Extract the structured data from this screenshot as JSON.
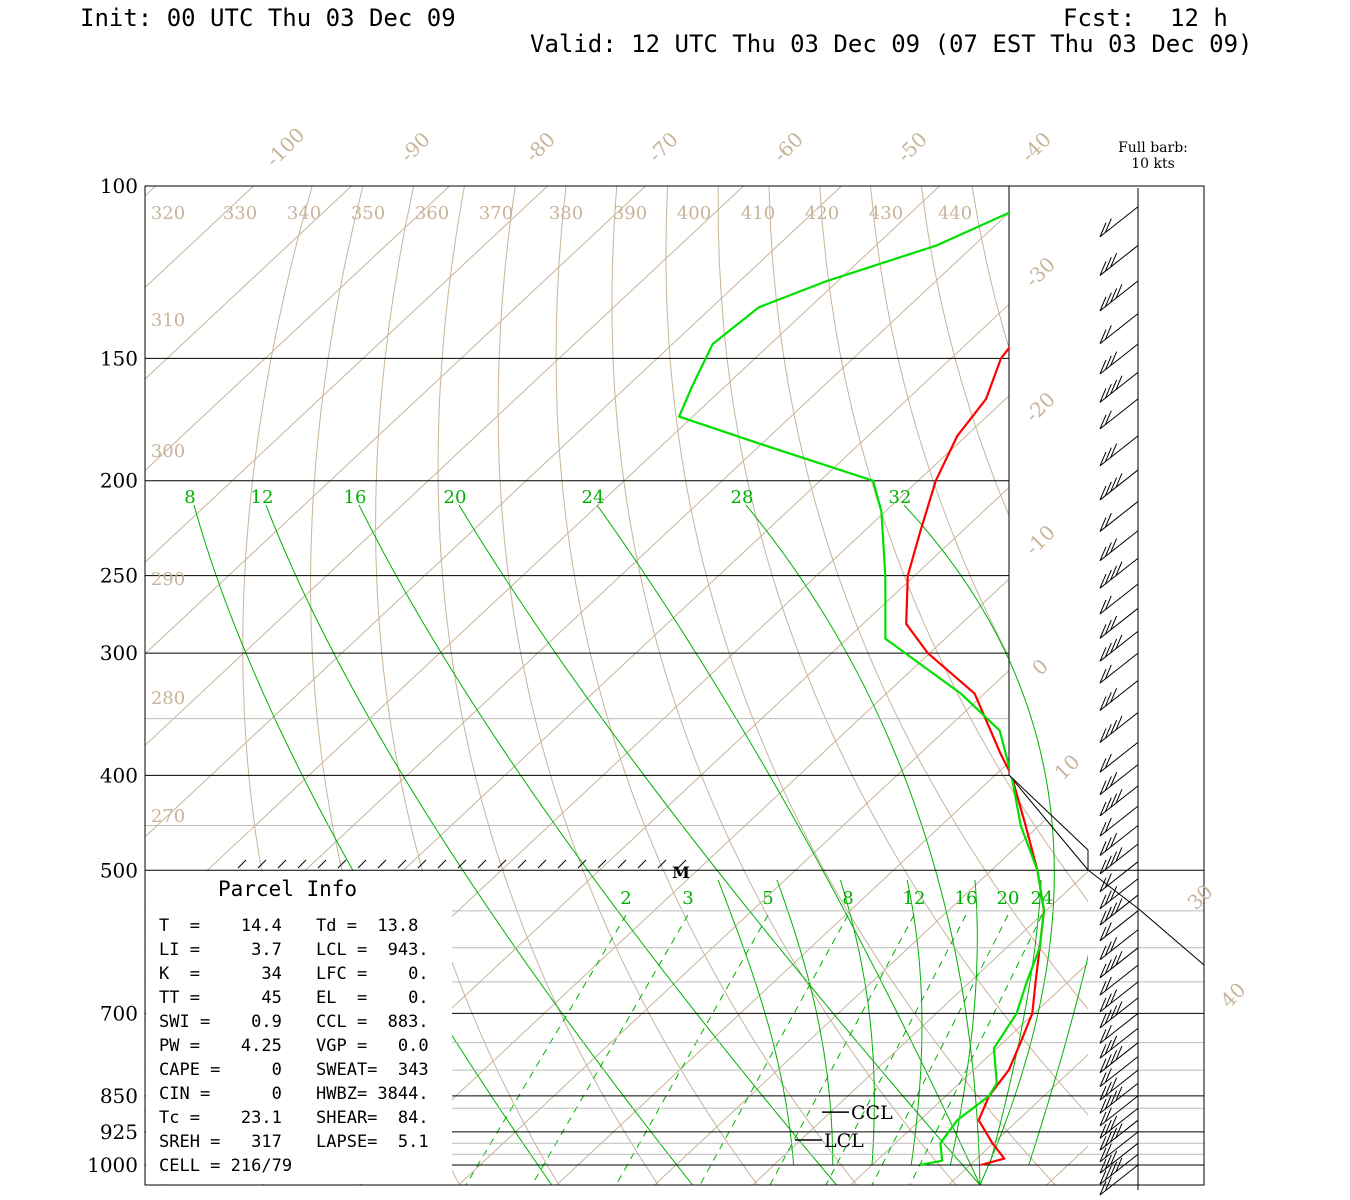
{
  "header": {
    "init": "Init: 00 UTC Thu 03 Dec 09",
    "fcst_label": "Fcst:",
    "fcst_value": "12 h",
    "valid": "Valid: 12 UTC Thu 03 Dec 09 (07 EST Thu 03 Dec 09)"
  },
  "barb_legend": {
    "line1": "Full barb:",
    "line2": "10 kts"
  },
  "colors": {
    "temperature": "#ff0000",
    "dewpoint": "#00e000",
    "mixing_ratio": "#00b000",
    "isotherm": "#c8b49a",
    "pressure_line": "#000000",
    "pressure_minor": "#bbbbbb"
  },
  "chart_data": {
    "type": "line",
    "subtype": "skew-T log-P sounding",
    "pressure_labels": [
      {
        "p": 100,
        "label": "100"
      },
      {
        "p": 150,
        "label": "150"
      },
      {
        "p": 200,
        "label": "200"
      },
      {
        "p": 250,
        "label": "250"
      },
      {
        "p": 300,
        "label": "300"
      },
      {
        "p": 400,
        "label": "400"
      },
      {
        "p": 500,
        "label": "500"
      },
      {
        "p": 700,
        "label": "700"
      },
      {
        "p": 850,
        "label": "850"
      },
      {
        "p": 925,
        "label": "925"
      },
      {
        "p": 1000,
        "label": "1000"
      }
    ],
    "isotherm_labels": [
      "-100",
      "-90",
      "-80",
      "-70",
      "-60",
      "-50",
      "-40",
      "-30",
      "-20",
      "-10",
      "0",
      "10",
      "30",
      "40"
    ],
    "theta_labels_top": [
      "320",
      "330",
      "340",
      "350",
      "360",
      "370",
      "380",
      "390",
      "400",
      "410",
      "420",
      "430",
      "440"
    ],
    "theta_labels_left": [
      "310",
      "300",
      "290",
      "280",
      "270"
    ],
    "mixing_ratio_upper": [
      "8",
      "12",
      "16",
      "20",
      "24",
      "28",
      "32"
    ],
    "mixing_ratio_lower": [
      "2",
      "3",
      "5",
      "8",
      "12",
      "16",
      "20",
      "24"
    ],
    "series": [
      {
        "name": "Temperature",
        "color": "#ff0000",
        "points": [
          [
            100,
            -67.2
          ],
          [
            115,
            -67.5
          ],
          [
            130,
            -67.0
          ],
          [
            140,
            -65.8
          ],
          [
            150,
            -64.9
          ],
          [
            165,
            -62.0
          ],
          [
            180,
            -60.9
          ],
          [
            200,
            -58.2
          ],
          [
            225,
            -54.3
          ],
          [
            250,
            -50.7
          ],
          [
            280,
            -45.6
          ],
          [
            300,
            -40.2
          ],
          [
            330,
            -31.0
          ],
          [
            380,
            -21.8
          ],
          [
            400,
            -18.3
          ],
          [
            450,
            -11.4
          ],
          [
            500,
            -5.3
          ],
          [
            550,
            -0.2
          ],
          [
            600,
            3.4
          ],
          [
            650,
            6.7
          ],
          [
            700,
            9.8
          ],
          [
            750,
            11.8
          ],
          [
            800,
            13.6
          ],
          [
            850,
            14.4
          ],
          [
            900,
            16.0
          ],
          [
            950,
            19.9
          ],
          [
            985,
            22.8
          ],
          [
            1000,
            21.1
          ]
        ]
      },
      {
        "name": "Dewpoint",
        "color": "#00e000",
        "points": [
          [
            104,
            -78.8
          ],
          [
            115,
            -83.8
          ],
          [
            125,
            -91.1
          ],
          [
            133,
            -95.2
          ],
          [
            145,
            -95.9
          ],
          [
            160,
            -93.4
          ],
          [
            172,
            -91.4
          ],
          [
            185,
            -78.6
          ],
          [
            200,
            -64.6
          ],
          [
            215,
            -60.4
          ],
          [
            250,
            -53.0
          ],
          [
            290,
            -46.1
          ],
          [
            330,
            -32.4
          ],
          [
            360,
            -24.4
          ],
          [
            400,
            -18.3
          ],
          [
            450,
            -11.9
          ],
          [
            500,
            -5.3
          ],
          [
            550,
            -0.2
          ],
          [
            600,
            3.4
          ],
          [
            650,
            5.8
          ],
          [
            700,
            8.2
          ],
          [
            760,
            9.7
          ],
          [
            825,
            13.8
          ],
          [
            850,
            14.4
          ],
          [
            900,
            13.8
          ],
          [
            950,
            14.6
          ],
          [
            990,
            16.7
          ],
          [
            1000,
            14.9
          ]
        ]
      }
    ],
    "wind_pressures": [
      105,
      115,
      125,
      135,
      145,
      155,
      165,
      180,
      195,
      210,
      225,
      240,
      255,
      270,
      285,
      300,
      320,
      345,
      370,
      390,
      410,
      430,
      450,
      470,
      490,
      510,
      530,
      550,
      575,
      600,
      625,
      650,
      675,
      700,
      725,
      750,
      775,
      800,
      825,
      850,
      875,
      900,
      925,
      950,
      975,
      1000
    ],
    "cloud_levels": [
      {
        "label": "CCL",
        "p": 883
      },
      {
        "label": "LCL",
        "p": 943
      }
    ],
    "marker_label": "M"
  },
  "parcel_info": {
    "title": "Parcel Info",
    "rows": [
      [
        "T  =    14.4",
        "Td =  13.8"
      ],
      [
        "LI =     3.7",
        "LCL =  943."
      ],
      [
        "K  =      34",
        "LFC =    0."
      ],
      [
        "TT =      45",
        "EL  =    0."
      ],
      [
        "SWI =    0.9",
        "CCL =  883."
      ],
      [
        "PW =    4.25",
        "VGP =   0.0"
      ],
      [
        "CAPE =     0",
        "SWEAT=  343"
      ],
      [
        "CIN =      0",
        "HWBZ= 3844."
      ],
      [
        "Tc =    23.1",
        "SHEAR=  84."
      ],
      [
        "SREH =   317",
        "LAPSE=  5.1"
      ],
      [
        "CELL = 216/79",
        ""
      ]
    ]
  }
}
